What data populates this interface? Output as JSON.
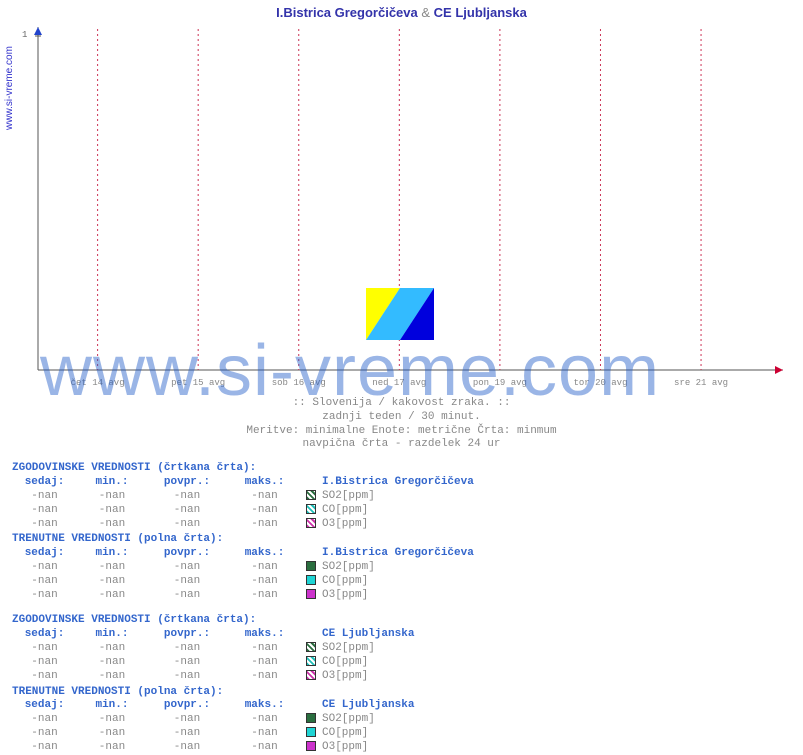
{
  "title_a": "I.Bistrica Gregorčičeva",
  "title_amp": "&",
  "title_b": "CE Ljubljanska",
  "ylabel": "www.si-vreme.com",
  "watermark": "www.si-vreme.com",
  "chart": {
    "type": "line",
    "series": [],
    "background_color": "#ffffff",
    "axis_color": "#555555",
    "divider_color": "#cc3355",
    "divider_dash": "2,3",
    "x_arrow_color": "#cc0033",
    "y_arrow_color": "#2244cc",
    "ytick_label": "1",
    "ylim": [
      0,
      1
    ],
    "xticks": [
      {
        "pos": 0.08,
        "label": "čet 14 avg"
      },
      {
        "pos": 0.215,
        "label": "pet 15 avg"
      },
      {
        "pos": 0.35,
        "label": "sob 16 avg"
      },
      {
        "pos": 0.485,
        "label": "ned 17 avg"
      },
      {
        "pos": 0.62,
        "label": "pon 19 avg"
      },
      {
        "pos": 0.755,
        "label": "tor 20 avg"
      },
      {
        "pos": 0.89,
        "label": "sre 21 avg"
      }
    ],
    "logo_colors": [
      "#ffff00",
      "#33bbff",
      "#0000dd"
    ]
  },
  "subtitle": [
    ":: Slovenija / kakovost zraka. ::",
    "zadnji teden / 30 minut.",
    "Meritve: minimalne  Enote: metrične  Črta: minmum",
    "navpična črta - razdelek 24 ur"
  ],
  "columns": {
    "now": "sedaj:",
    "min": "min.:",
    "avg": "povpr.:",
    "max": "maks.:"
  },
  "blocks": [
    {
      "title": "ZGODOVINSKE VREDNOSTI (črtkana črta):",
      "station": "I.Bistrica Gregorčičeva",
      "dotted": true,
      "rows": [
        {
          "now": "-nan",
          "min": "-nan",
          "avg": "-nan",
          "max": "-nan",
          "color": "#2a6e3f",
          "label": "SO2[ppm]"
        },
        {
          "now": "-nan",
          "min": "-nan",
          "avg": "-nan",
          "max": "-nan",
          "color": "#1fbfb8",
          "label": "CO[ppm]"
        },
        {
          "now": "-nan",
          "min": "-nan",
          "avg": "-nan",
          "max": "-nan",
          "color": "#cc33aa",
          "label": "O3[ppm]"
        }
      ]
    },
    {
      "title": "TRENUTNE VREDNOSTI (polna črta):",
      "station": "I.Bistrica Gregorčičeva",
      "dotted": false,
      "rows": [
        {
          "now": "-nan",
          "min": "-nan",
          "avg": "-nan",
          "max": "-nan",
          "color": "#2a6e3f",
          "label": "SO2[ppm]"
        },
        {
          "now": "-nan",
          "min": "-nan",
          "avg": "-nan",
          "max": "-nan",
          "color": "#1fd4d4",
          "label": "CO[ppm]"
        },
        {
          "now": "-nan",
          "min": "-nan",
          "avg": "-nan",
          "max": "-nan",
          "color": "#cc33cc",
          "label": "O3[ppm]"
        }
      ]
    },
    {
      "title": "ZGODOVINSKE VREDNOSTI (črtkana črta):",
      "station": "CE Ljubljanska",
      "dotted": true,
      "gap": true,
      "rows": [
        {
          "now": "-nan",
          "min": "-nan",
          "avg": "-nan",
          "max": "-nan",
          "color": "#2a6e3f",
          "label": "SO2[ppm]"
        },
        {
          "now": "-nan",
          "min": "-nan",
          "avg": "-nan",
          "max": "-nan",
          "color": "#1fbfb8",
          "label": "CO[ppm]"
        },
        {
          "now": "-nan",
          "min": "-nan",
          "avg": "-nan",
          "max": "-nan",
          "color": "#cc33aa",
          "label": "O3[ppm]"
        }
      ]
    },
    {
      "title": "TRENUTNE VREDNOSTI (polna črta):",
      "station": "CE Ljubljanska",
      "dotted": false,
      "rows": [
        {
          "now": "-nan",
          "min": "-nan",
          "avg": "-nan",
          "max": "-nan",
          "color": "#2a6e3f",
          "label": "SO2[ppm]"
        },
        {
          "now": "-nan",
          "min": "-nan",
          "avg": "-nan",
          "max": "-nan",
          "color": "#1fd4d4",
          "label": "CO[ppm]"
        },
        {
          "now": "-nan",
          "min": "-nan",
          "avg": "-nan",
          "max": "-nan",
          "color": "#cc33cc",
          "label": "O3[ppm]"
        }
      ]
    }
  ]
}
